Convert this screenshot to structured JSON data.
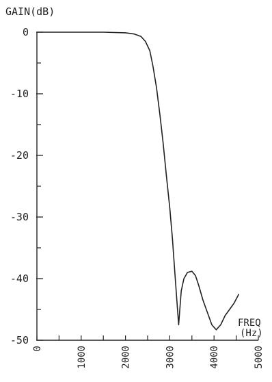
{
  "chart_data": {
    "type": "line",
    "title": "",
    "ylabel": "GAIN(dB)",
    "xlabel_line1": "FREQ",
    "xlabel_line2": "(Hz)",
    "xlim": [
      0,
      5000
    ],
    "ylim": [
      -50,
      0
    ],
    "yticks_labeled": [
      0,
      -10,
      -20,
      -30,
      -40,
      -50
    ],
    "ytick_labels": [
      "0",
      "-10",
      "-20",
      "-30",
      "-40",
      "-50"
    ],
    "yticks_minor": [
      -5,
      -15,
      -25,
      -35,
      -45
    ],
    "xticks": [
      0,
      500,
      1000,
      1500,
      2000,
      2500,
      3000,
      3500,
      4000,
      4500,
      5000
    ],
    "xtick_labels_values": [
      0,
      1000,
      2000,
      3000,
      4000,
      5000
    ],
    "xtick_labels": [
      "0",
      "1000",
      "2000",
      "3000",
      "4000",
      "5000"
    ],
    "grid": false,
    "series": [
      {
        "x": [
          0,
          500,
          1000,
          1500,
          2000,
          2200,
          2350,
          2450,
          2550,
          2620,
          2700,
          2780,
          2850,
          2920,
          3000,
          3060,
          3110,
          3150,
          3200,
          3260,
          3320,
          3400,
          3500,
          3580,
          3650,
          3750,
          3850,
          3950,
          4050,
          4150,
          4250,
          4350,
          4450,
          4560
        ],
        "y": [
          0,
          0,
          0,
          0,
          -0.1,
          -0.3,
          -0.7,
          -1.5,
          -3,
          -5.5,
          -9,
          -13.5,
          -18,
          -23,
          -28.5,
          -33.5,
          -38.5,
          -42.5,
          -47.5,
          -42,
          -40,
          -39,
          -38.8,
          -39.5,
          -41,
          -43.5,
          -45.5,
          -47.5,
          -48.3,
          -47.5,
          -46,
          -45,
          -44,
          -42.5
        ]
      }
    ]
  }
}
